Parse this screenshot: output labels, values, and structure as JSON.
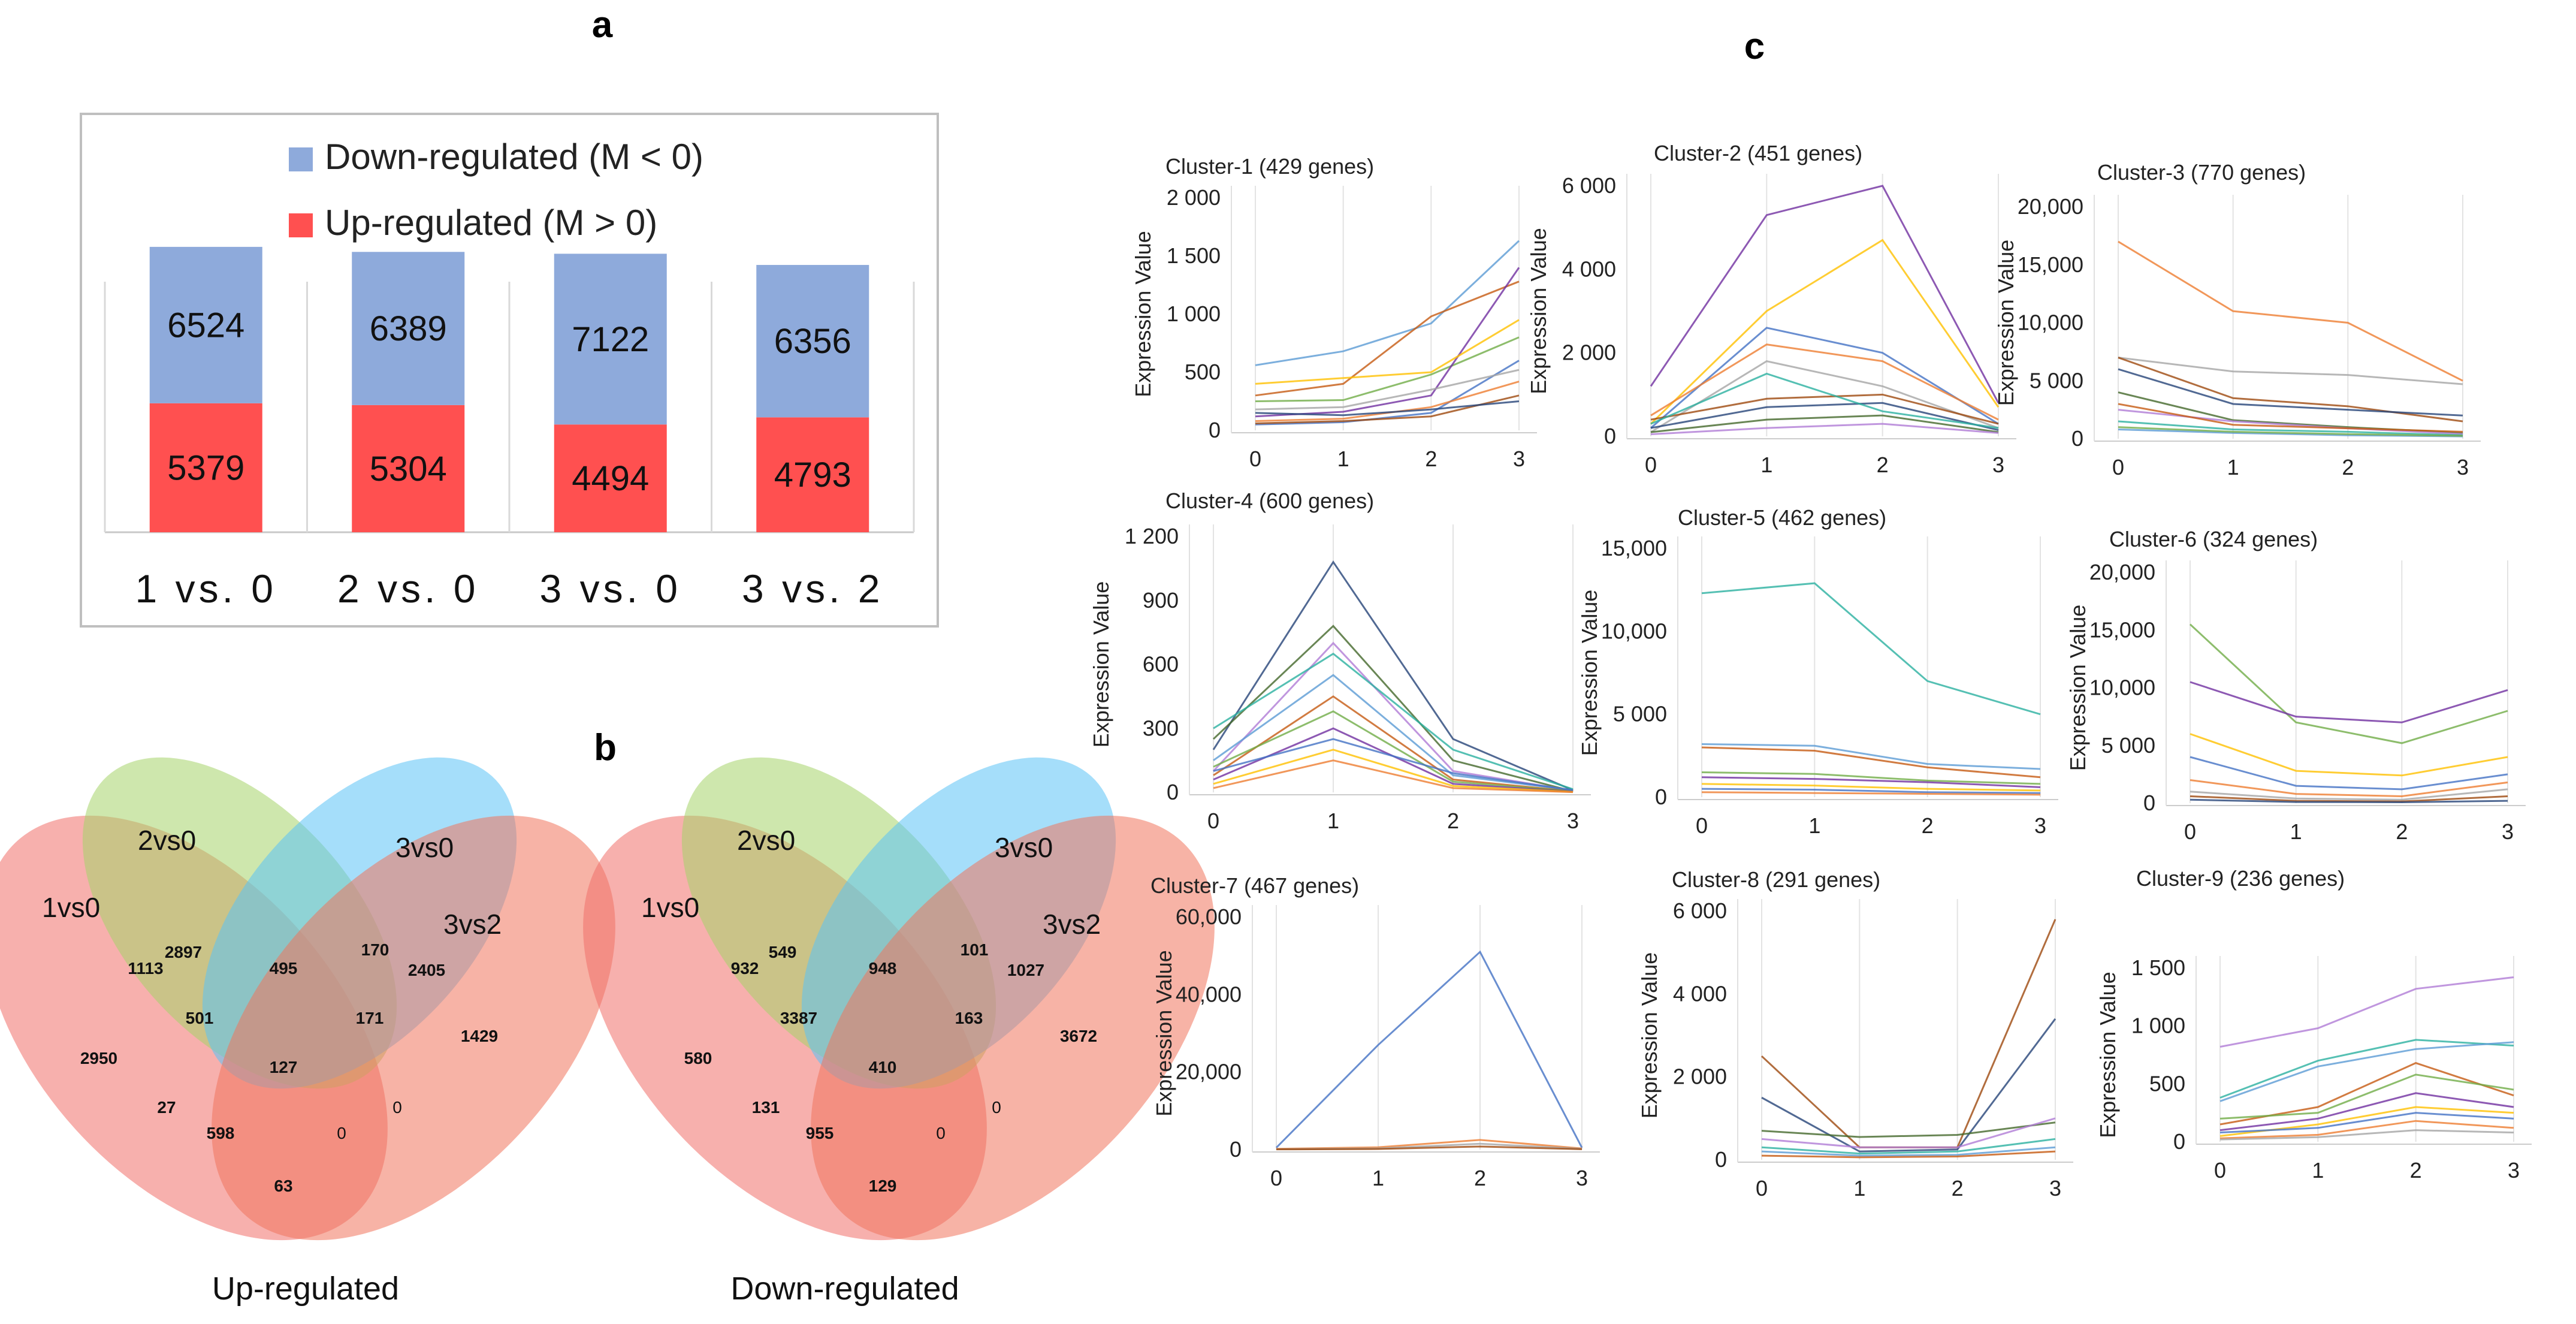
{
  "panel_labels": {
    "a": "a",
    "b": "b",
    "c": "c"
  },
  "colors": {
    "down": "#8eaadb",
    "up": "#ff5050",
    "venn_1vs0": "#f0706a",
    "venn_2vs0": "#a6d36a",
    "venn_3vs0": "#5bc3f5",
    "venn_3vs2": "#f0745c"
  },
  "chart_data": [
    {
      "id": "panel-a",
      "type": "bar",
      "stacked": true,
      "categories": [
        "1 vs. 0",
        "2 vs. 0",
        "3 vs. 0",
        "3 vs. 2"
      ],
      "series": [
        {
          "name": "Up-regulated (M > 0)",
          "values": [
            5379,
            5304,
            4494,
            4793
          ],
          "color": "#ff5050"
        },
        {
          "name": "Down-regulated (M < 0)",
          "values": [
            6524,
            6389,
            7122,
            6356
          ],
          "color": "#8eaadb"
        }
      ],
      "legend": [
        "Down-regulated (M < 0)",
        "Up-regulated (M > 0)"
      ],
      "title": "",
      "xlabel": "",
      "ylabel": "",
      "ylim": [
        0,
        13000
      ]
    },
    {
      "id": "panel-b",
      "type": "venn",
      "sets": [
        "1vs0",
        "2vs0",
        "3vs0",
        "3vs2"
      ],
      "diagrams": [
        {
          "title": "Up-regulated",
          "regions": {
            "only_2vs0": 2897,
            "2vs0_3vs0": 495,
            "only_3vs0": 170,
            "1vs0_2vs0": 1113,
            "3vs0_3vs2": 2405,
            "only_1vs0": 2950,
            "1vs0_2vs0_3vs0": 501,
            "2vs0_3vs0_3vs2": 171,
            "only_3vs2": 1429,
            "all": 127,
            "1vs0_3vs0": 27,
            "2vs0_3vs2": 0,
            "1vs0_3vs0_3vs2": 598,
            "1vs0_2vs0_3vs2": 0,
            "1vs0_3vs2": 63
          }
        },
        {
          "title": "Down-regulated",
          "regions": {
            "only_2vs0": 549,
            "2vs0_3vs0": 948,
            "only_3vs0": 101,
            "1vs0_2vs0": 932,
            "3vs0_3vs2": 1027,
            "only_1vs0": 580,
            "1vs0_2vs0_3vs0": 3387,
            "2vs0_3vs0_3vs2": 163,
            "only_3vs2": 3672,
            "all": 410,
            "1vs0_3vs0": 131,
            "2vs0_3vs2": 0,
            "1vs0_3vs0_3vs2": 955,
            "1vs0_2vs0_3vs2": 0,
            "1vs0_3vs2": 129
          }
        }
      ]
    },
    {
      "id": "panel-c",
      "type": "line",
      "ylabel": "Expression Value",
      "x": [
        0,
        1,
        2,
        3
      ],
      "clusters": [
        {
          "title": "Cluster-1 (429 genes)",
          "ylim": [
            0,
            2000
          ],
          "yticks": [
            "0",
            "500",
            "1 000",
            "1 500",
            "2 000"
          ],
          "series": [
            [
              560,
              680,
              920,
              1630
            ],
            [
              300,
              400,
              980,
              1280
            ],
            [
              250,
              260,
              480,
              800
            ],
            [
              120,
              160,
              300,
              1400
            ],
            [
              400,
              450,
              500,
              950
            ],
            [
              50,
              70,
              150,
              600
            ],
            [
              80,
              100,
              200,
              420
            ],
            [
              180,
              200,
              350,
              520
            ],
            [
              60,
              80,
              120,
              300
            ],
            [
              150,
              130,
              180,
              250
            ]
          ]
        },
        {
          "title": "Cluster-2 (451 genes)",
          "ylim": [
            0,
            6000
          ],
          "yticks": [
            "0",
            "2 000",
            "4 000",
            "6 000"
          ],
          "series": [
            [
              1200,
              5300,
              6000,
              800
            ],
            [
              300,
              3000,
              4700,
              700
            ],
            [
              200,
              2600,
              2000,
              300
            ],
            [
              500,
              2200,
              1800,
              400
            ],
            [
              100,
              1800,
              1200,
              200
            ],
            [
              400,
              900,
              1000,
              300
            ],
            [
              200,
              700,
              800,
              150
            ],
            [
              100,
              400,
              500,
              100
            ],
            [
              50,
              200,
              300,
              80
            ],
            [
              300,
              1500,
              600,
              200
            ]
          ]
        },
        {
          "title": "Cluster-3 (770 genes)",
          "ylim": [
            0,
            20000
          ],
          "yticks": [
            "0",
            "5 000",
            "10,000",
            "15,000",
            "20,000"
          ],
          "series": [
            [
              17000,
              11000,
              10000,
              5000
            ],
            [
              7000,
              5800,
              5500,
              4700
            ],
            [
              7000,
              3500,
              2800,
              1500
            ],
            [
              6000,
              3000,
              2500,
              2000
            ],
            [
              4000,
              1600,
              1000,
              500
            ],
            [
              2500,
              1500,
              900,
              400
            ],
            [
              1500,
              800,
              600,
              300
            ],
            [
              800,
              500,
              300,
              200
            ],
            [
              3000,
              1200,
              900,
              600
            ],
            [
              1000,
              600,
              400,
              250
            ]
          ]
        },
        {
          "title": "Cluster-4 (600 genes)",
          "ylim": [
            0,
            1200
          ],
          "yticks": [
            "0",
            "300",
            "600",
            "900",
            "1 200"
          ],
          "series": [
            [
              200,
              1080,
              250,
              10
            ],
            [
              250,
              780,
              150,
              5
            ],
            [
              100,
              700,
              100,
              8
            ],
            [
              300,
              650,
              200,
              15
            ],
            [
              150,
              550,
              80,
              10
            ],
            [
              80,
              450,
              60,
              5
            ],
            [
              120,
              380,
              50,
              5
            ],
            [
              60,
              300,
              40,
              3
            ],
            [
              40,
              200,
              30,
              2
            ],
            [
              100,
              250,
              90,
              10
            ],
            [
              20,
              150,
              20,
              1
            ]
          ]
        },
        {
          "title": "Cluster-5 (462 genes)",
          "ylim": [
            0,
            15000
          ],
          "yticks": [
            "0",
            "5 000",
            "10,000",
            "15,000"
          ],
          "series": [
            [
              12300,
              12900,
              7000,
              5000
            ],
            [
              3200,
              3100,
              2000,
              1700
            ],
            [
              3000,
              2800,
              1800,
              1200
            ],
            [
              1500,
              1400,
              1000,
              800
            ],
            [
              1200,
              1100,
              900,
              600
            ],
            [
              800,
              700,
              500,
              400
            ],
            [
              500,
              450,
              300,
              250
            ],
            [
              300,
              250,
              200,
              150
            ]
          ]
        },
        {
          "title": "Cluster-6 (324 genes)",
          "ylim": [
            0,
            20000
          ],
          "yticks": [
            "0",
            "5 000",
            "10,000",
            "15,000",
            "20,000"
          ],
          "series": [
            [
              15500,
              7000,
              5200,
              8000
            ],
            [
              10500,
              7500,
              7000,
              9800
            ],
            [
              6000,
              2800,
              2400,
              4000
            ],
            [
              4000,
              1500,
              1200,
              2500
            ],
            [
              2000,
              800,
              600,
              1800
            ],
            [
              1000,
              400,
              300,
              1200
            ],
            [
              600,
              200,
              150,
              600
            ],
            [
              300,
              100,
              80,
              200
            ]
          ]
        },
        {
          "title": "Cluster-7 (467 genes)",
          "ylim": [
            0,
            60000
          ],
          "yticks": [
            "0",
            "20,000",
            "40,000",
            "60,000"
          ],
          "series": [
            [
              500,
              27000,
              51000,
              500
            ],
            [
              200,
              600,
              2500,
              300
            ],
            [
              100,
              300,
              1500,
              200
            ],
            [
              50,
              150,
              800,
              100
            ]
          ]
        },
        {
          "title": "Cluster-8 (291 genes)",
          "ylim": [
            0,
            6000
          ],
          "yticks": [
            "0",
            "2 000",
            "4 000",
            "6 000"
          ],
          "series": [
            [
              2500,
              300,
              300,
              5800
            ],
            [
              1500,
              200,
              250,
              3400
            ],
            [
              700,
              550,
              600,
              900
            ],
            [
              500,
              300,
              300,
              1000
            ],
            [
              300,
              150,
              200,
              500
            ],
            [
              200,
              100,
              120,
              300
            ],
            [
              100,
              60,
              80,
              200
            ]
          ]
        },
        {
          "title": "Cluster-9 (236 genes)",
          "ylim": [
            0,
            1500
          ],
          "yticks": [
            "0",
            "500",
            "1 000",
            "1 500"
          ],
          "series": [
            [
              820,
              980,
              1320,
              1420
            ],
            [
              380,
              700,
              880,
              830
            ],
            [
              350,
              650,
              800,
              860
            ],
            [
              150,
              300,
              680,
              400
            ],
            [
              200,
              250,
              580,
              450
            ],
            [
              100,
              200,
              420,
              300
            ],
            [
              50,
              150,
              300,
              250
            ],
            [
              80,
              120,
              250,
              200
            ],
            [
              30,
              60,
              180,
              120
            ],
            [
              20,
              40,
              100,
              80
            ]
          ]
        }
      ]
    }
  ]
}
